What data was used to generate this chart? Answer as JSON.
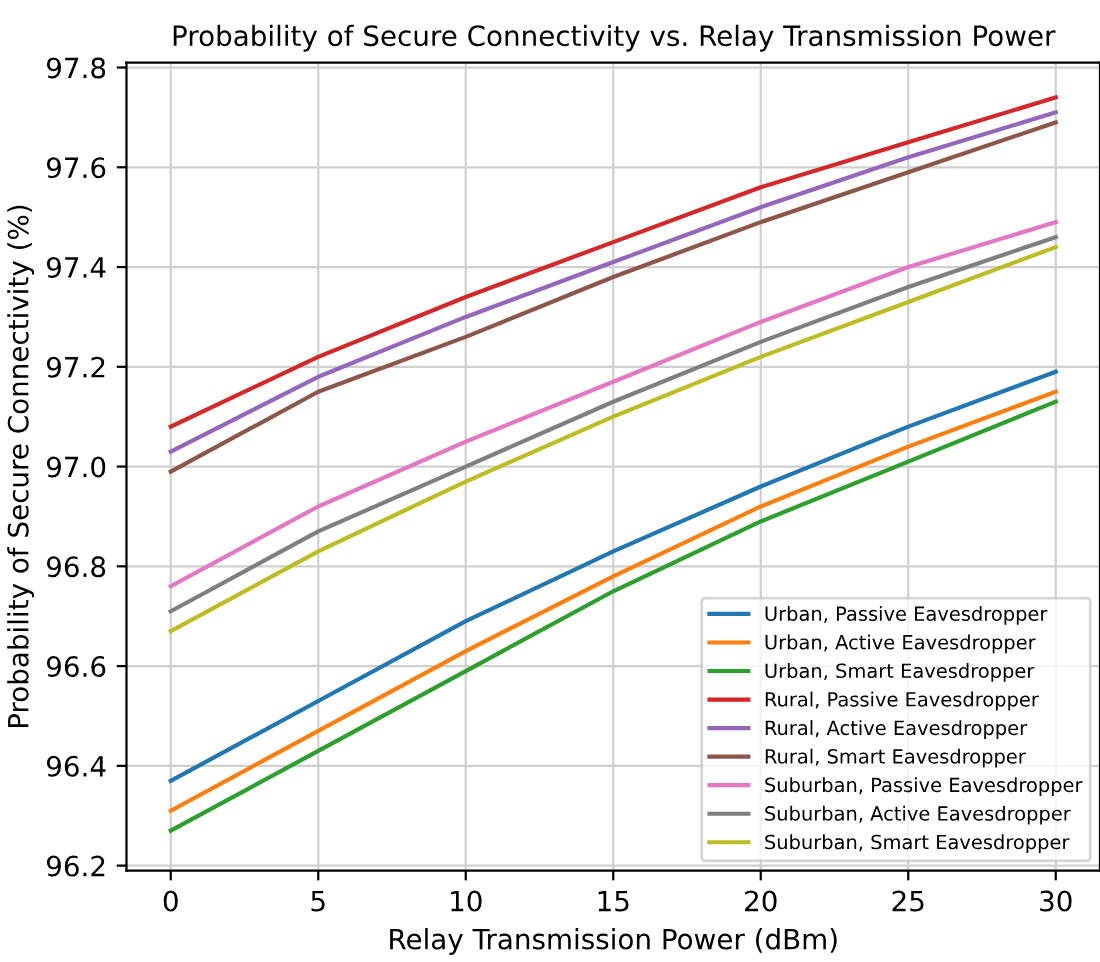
{
  "chart_data": {
    "type": "line",
    "title": "Probability of Secure Connectivity vs. Relay Transmission Power",
    "xlabel": "Relay Transmission Power (dBm)",
    "ylabel": "Probability of Secure Connectivity (%)",
    "x": [
      0,
      5,
      10,
      15,
      20,
      25,
      30
    ],
    "series": [
      {
        "name": "Urban, Passive Eavesdropper",
        "color": "#1f77b4",
        "values": [
          96.37,
          96.53,
          96.69,
          96.83,
          96.96,
          97.08,
          97.19
        ]
      },
      {
        "name": "Urban, Active Eavesdropper",
        "color": "#ff7f0e",
        "values": [
          96.31,
          96.47,
          96.63,
          96.78,
          96.92,
          97.04,
          97.15
        ]
      },
      {
        "name": "Urban, Smart Eavesdropper",
        "color": "#2ca02c",
        "values": [
          96.27,
          96.43,
          96.59,
          96.75,
          96.89,
          97.01,
          97.13
        ]
      },
      {
        "name": "Rural, Passive Eavesdropper",
        "color": "#d62728",
        "values": [
          97.08,
          97.22,
          97.34,
          97.45,
          97.56,
          97.65,
          97.74
        ]
      },
      {
        "name": "Rural, Active Eavesdropper",
        "color": "#9467bd",
        "values": [
          97.03,
          97.18,
          97.3,
          97.41,
          97.52,
          97.62,
          97.71
        ]
      },
      {
        "name": "Rural, Smart Eavesdropper",
        "color": "#8c564b",
        "values": [
          96.99,
          97.15,
          97.26,
          97.38,
          97.49,
          97.59,
          97.69
        ]
      },
      {
        "name": "Suburban, Passive Eavesdropper",
        "color": "#e377c2",
        "values": [
          96.76,
          96.92,
          97.05,
          97.17,
          97.29,
          97.4,
          97.49
        ]
      },
      {
        "name": "Suburban, Active Eavesdropper",
        "color": "#7f7f7f",
        "values": [
          96.71,
          96.87,
          97.0,
          97.13,
          97.25,
          97.36,
          97.46
        ]
      },
      {
        "name": "Suburban, Smart Eavesdropper",
        "color": "#bcbd22",
        "values": [
          96.67,
          96.83,
          96.97,
          97.1,
          97.22,
          97.33,
          97.44
        ]
      }
    ],
    "xlim": [
      -1.5,
      31.5
    ],
    "ylim": [
      96.19,
      97.81
    ],
    "xticks": [
      0,
      5,
      10,
      15,
      20,
      25,
      30
    ],
    "yticks": [
      {
        "value": 96.2,
        "label": "96.2"
      },
      {
        "value": 96.4,
        "label": "96.4"
      },
      {
        "value": 96.6,
        "label": "96.6"
      },
      {
        "value": 96.8,
        "label": "96.8"
      },
      {
        "value": 97.0,
        "label": "97.0"
      },
      {
        "value": 97.2,
        "label": "97.2"
      },
      {
        "value": 97.4,
        "label": "97.4"
      },
      {
        "value": 97.6,
        "label": "97.6"
      },
      {
        "value": 97.8,
        "label": "97.8"
      }
    ],
    "grid": true,
    "legend": "bottom right",
    "marker": "none",
    "line_style": "solid"
  }
}
